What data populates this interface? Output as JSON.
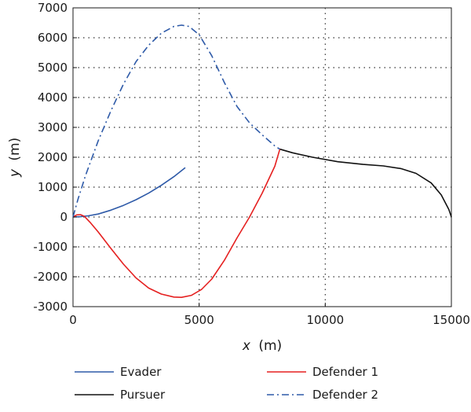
{
  "chart_data": {
    "type": "line",
    "xlabel_var": "x",
    "xlabel_unit": "(m)",
    "ylabel_var": "y",
    "ylabel_unit": "(m)",
    "xlim": [
      0,
      15000
    ],
    "ylim": [
      -3000,
      7000
    ],
    "xticks": [
      0,
      5000,
      10000,
      15000
    ],
    "yticks": [
      -3000,
      -2000,
      -1000,
      0,
      1000,
      2000,
      3000,
      4000,
      5000,
      6000,
      7000
    ],
    "grid": "dotted",
    "legend_position": "bottom",
    "series": [
      {
        "name": "Evader",
        "color": "#2e5aa8",
        "style": "solid",
        "points": [
          [
            0,
            0
          ],
          [
            300,
            10
          ],
          [
            600,
            40
          ],
          [
            1000,
            100
          ],
          [
            1500,
            230
          ],
          [
            2000,
            390
          ],
          [
            2500,
            580
          ],
          [
            3000,
            800
          ],
          [
            3500,
            1060
          ],
          [
            4000,
            1350
          ],
          [
            4450,
            1650
          ]
        ]
      },
      {
        "name": "Pursuer",
        "color": "#111111",
        "style": "solid",
        "points": [
          [
            8200,
            2270
          ],
          [
            8700,
            2150
          ],
          [
            9500,
            2000
          ],
          [
            10500,
            1850
          ],
          [
            11500,
            1760
          ],
          [
            12300,
            1710
          ],
          [
            13000,
            1620
          ],
          [
            13600,
            1460
          ],
          [
            14200,
            1140
          ],
          [
            14600,
            740
          ],
          [
            14900,
            250
          ],
          [
            15000,
            0
          ]
        ]
      },
      {
        "name": "Defender 1",
        "color": "#e52020",
        "style": "solid",
        "points": [
          [
            0,
            0
          ],
          [
            150,
            70
          ],
          [
            300,
            80
          ],
          [
            450,
            20
          ],
          [
            700,
            -200
          ],
          [
            1000,
            -500
          ],
          [
            1500,
            -1050
          ],
          [
            2000,
            -1580
          ],
          [
            2500,
            -2040
          ],
          [
            3000,
            -2380
          ],
          [
            3500,
            -2580
          ],
          [
            4000,
            -2680
          ],
          [
            4300,
            -2690
          ],
          [
            4700,
            -2620
          ],
          [
            5100,
            -2420
          ],
          [
            5500,
            -2080
          ],
          [
            6000,
            -1450
          ],
          [
            6500,
            -700
          ],
          [
            7000,
            0
          ],
          [
            7500,
            800
          ],
          [
            8000,
            1700
          ],
          [
            8200,
            2270
          ]
        ]
      },
      {
        "name": "Defender 2",
        "color": "#2e5aa8",
        "style": "dashdot",
        "points": [
          [
            0,
            0
          ],
          [
            200,
            600
          ],
          [
            500,
            1400
          ],
          [
            1000,
            2550
          ],
          [
            1500,
            3550
          ],
          [
            2000,
            4450
          ],
          [
            2500,
            5200
          ],
          [
            3000,
            5750
          ],
          [
            3500,
            6150
          ],
          [
            4000,
            6380
          ],
          [
            4300,
            6420
          ],
          [
            4600,
            6380
          ],
          [
            5000,
            6100
          ],
          [
            5500,
            5400
          ],
          [
            6000,
            4500
          ],
          [
            6500,
            3700
          ],
          [
            7000,
            3150
          ],
          [
            7500,
            2750
          ],
          [
            8000,
            2380
          ],
          [
            8200,
            2270
          ]
        ]
      }
    ]
  }
}
